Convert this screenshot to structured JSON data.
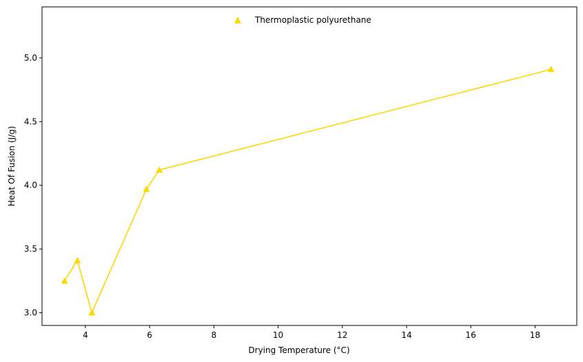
{
  "chart_data": {
    "type": "line",
    "title": "",
    "xlabel": "Drying Temperature (°C)",
    "ylabel": "Heat Of Fusion (J/g)",
    "xlim": [
      2.65,
      19.3
    ],
    "ylim": [
      2.9,
      5.4
    ],
    "xticks": [
      4,
      6,
      8,
      10,
      12,
      14,
      16,
      18
    ],
    "yticks": [
      3.0,
      3.5,
      4.0,
      4.5,
      5.0
    ],
    "xtick_labels": [
      "4",
      "6",
      "8",
      "10",
      "12",
      "14",
      "16",
      "18"
    ],
    "ytick_labels": [
      "3.0",
      "3.5",
      "4.0",
      "4.5",
      "5.0"
    ],
    "grid": false,
    "legend_position": "top-center",
    "series": [
      {
        "name": "Thermoplastic polyurethane",
        "color": "#FFD700",
        "marker": "triangle",
        "x": [
          3.35,
          3.75,
          4.2,
          5.9,
          6.3,
          18.5
        ],
        "y": [
          3.25,
          3.41,
          3.0,
          3.97,
          4.12,
          4.91
        ]
      }
    ]
  }
}
